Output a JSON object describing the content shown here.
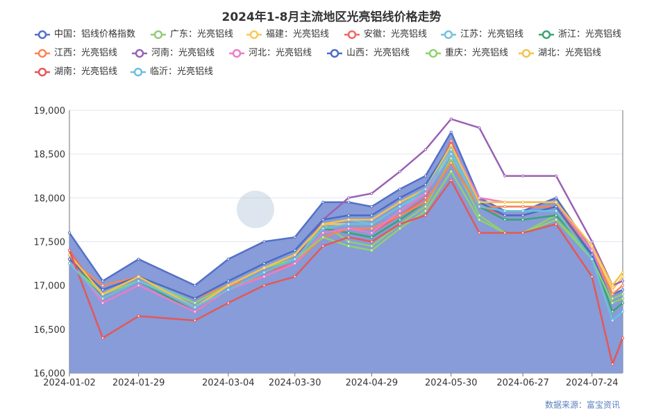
{
  "chart_data": {
    "type": "area",
    "title": "2024年1-8月主流地区光亮铝线价格走势",
    "source": "数据来源：富宝资讯",
    "ylim": [
      16000,
      19000
    ],
    "yticks": [
      "16,000",
      "16,500",
      "17,000",
      "17,500",
      "18,000",
      "18,500",
      "19,000"
    ],
    "xticks": [
      "2024-01-02",
      "2024-01-29",
      "2024-03-04",
      "2024-03-30",
      "2024-04-29",
      "2024-05-30",
      "2024-06-27",
      "2024-07-24"
    ],
    "x": [
      "2024-01-02",
      "2024-01-15",
      "2024-01-29",
      "2024-02-20",
      "2024-03-04",
      "2024-03-18",
      "2024-03-30",
      "2024-04-10",
      "2024-04-20",
      "2024-04-29",
      "2024-05-10",
      "2024-05-20",
      "2024-05-30",
      "2024-06-10",
      "2024-06-20",
      "2024-06-27",
      "2024-07-10",
      "2024-07-24",
      "2024-08-01",
      "2024-08-05"
    ],
    "grid": true,
    "legend_position": "top",
    "series": [
      {
        "name": "中国：铝线价格指数",
        "color": "#5470c6",
        "area": true,
        "values": [
          17600,
          17050,
          17300,
          17000,
          17300,
          17500,
          17550,
          17950,
          17950,
          17900,
          18100,
          18250,
          18750,
          18000,
          17850,
          17850,
          18000,
          17400,
          16900,
          16950
        ]
      },
      {
        "name": "广东：光亮铝线",
        "color": "#91cc75",
        "values": [
          17350,
          16900,
          17100,
          16800,
          17000,
          17200,
          17300,
          17700,
          17500,
          17450,
          17700,
          17900,
          18450,
          17800,
          17600,
          17600,
          17800,
          17300,
          16850,
          16900
        ]
      },
      {
        "name": "福建：光亮铝线",
        "color": "#fac858",
        "values": [
          17300,
          16850,
          17050,
          16750,
          17000,
          17200,
          17350,
          17700,
          17700,
          17700,
          17900,
          18050,
          18550,
          17950,
          17950,
          17950,
          17950,
          17400,
          16950,
          17100
        ]
      },
      {
        "name": "安徽：光亮铝线",
        "color": "#ee6666",
        "values": [
          17400,
          16850,
          17050,
          16700,
          16950,
          17150,
          17250,
          17600,
          17650,
          17600,
          17800,
          18000,
          18650,
          17900,
          17800,
          17800,
          17900,
          17300,
          16800,
          16850
        ]
      },
      {
        "name": "江苏：光亮铝线",
        "color": "#73c0de",
        "values": [
          17350,
          16900,
          17100,
          16800,
          17000,
          17200,
          17350,
          17700,
          17750,
          17700,
          17900,
          18050,
          18500,
          17900,
          17900,
          17900,
          17900,
          17350,
          16700,
          16800
        ]
      },
      {
        "name": "浙江：光亮铝线",
        "color": "#3ba272",
        "values": [
          17350,
          16850,
          17050,
          16700,
          16950,
          17150,
          17300,
          17650,
          17600,
          17550,
          17750,
          17950,
          18400,
          17900,
          17750,
          17750,
          17800,
          17350,
          16700,
          16800
        ]
      },
      {
        "name": "江西：光亮铝线",
        "color": "#fc8452",
        "values": [
          17300,
          17000,
          17100,
          16850,
          17000,
          17100,
          17250,
          17550,
          17650,
          17650,
          17800,
          17950,
          18400,
          17900,
          17900,
          17900,
          17900,
          17400,
          16900,
          17000
        ]
      },
      {
        "name": "河南：光亮铝线",
        "color": "#9a60b4",
        "values": [
          17300,
          16850,
          17050,
          16750,
          16950,
          17150,
          17300,
          17750,
          18000,
          18050,
          18300,
          18550,
          18900,
          18800,
          18250,
          18250,
          18250,
          17500,
          17000,
          17050
        ]
      },
      {
        "name": "河北：光亮铝线",
        "color": "#ea7ccc",
        "values": [
          17300,
          16800,
          17000,
          16700,
          16950,
          17100,
          17250,
          17600,
          17650,
          17600,
          17850,
          18050,
          18600,
          18000,
          17950,
          17950,
          17950,
          17400,
          16800,
          16850
        ]
      },
      {
        "name": "山西：光亮铝线",
        "color": "#4a6cc4",
        "values": [
          17300,
          16950,
          17100,
          16850,
          17050,
          17250,
          17400,
          17750,
          17800,
          17800,
          18000,
          18150,
          18600,
          17950,
          17800,
          17800,
          17900,
          17350,
          16800,
          16850
        ]
      },
      {
        "name": "重庆：光亮铝线",
        "color": "#8fd16e",
        "values": [
          17250,
          16900,
          17050,
          16800,
          17000,
          17200,
          17300,
          17550,
          17450,
          17400,
          17650,
          17850,
          18300,
          17750,
          17600,
          17600,
          17750,
          17300,
          16800,
          16850
        ]
      },
      {
        "name": "湖北：光亮铝线",
        "color": "#f5c24c",
        "values": [
          17350,
          16900,
          17100,
          16750,
          17000,
          17200,
          17350,
          17700,
          17750,
          17750,
          17950,
          18100,
          18600,
          17950,
          17950,
          17950,
          17950,
          17450,
          17000,
          17150
        ]
      },
      {
        "name": "湖南：光亮铝线",
        "color": "#e55757",
        "values": [
          17400,
          16400,
          16650,
          16600,
          16800,
          17000,
          17100,
          17450,
          17550,
          17500,
          17700,
          17800,
          18200,
          17600,
          17600,
          17600,
          17700,
          17100,
          16100,
          16400
        ]
      },
      {
        "name": "临沂：光亮铝线",
        "color": "#6cbfdd",
        "values": [
          17250,
          16850,
          17050,
          16750,
          16950,
          17150,
          17300,
          17650,
          17700,
          17700,
          17900,
          18100,
          18550,
          17900,
          17850,
          17850,
          17850,
          17300,
          16600,
          16700
        ]
      }
    ]
  }
}
